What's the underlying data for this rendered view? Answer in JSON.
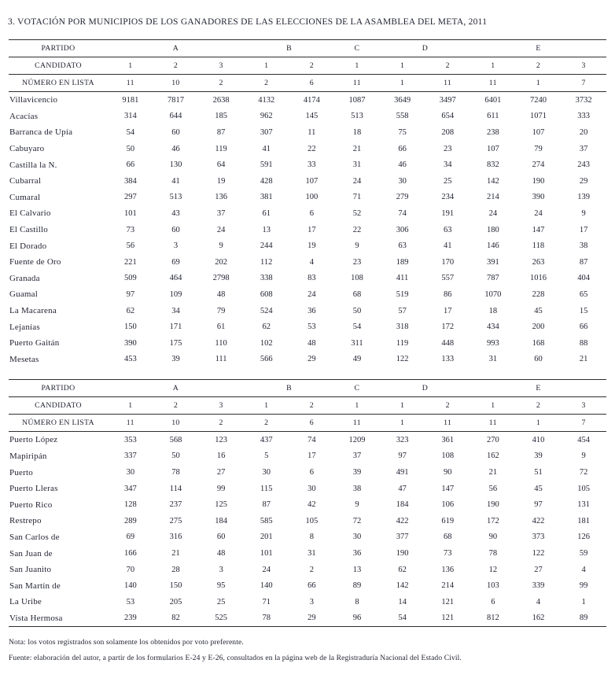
{
  "title": "3. VOTACIÓN POR MUNICIPIOS DE LOS GANADORES DE LAS ELECCIONES DE LA ASAMBLEA DEL META, 2011",
  "table_header": {
    "partido_label": "PARTIDO",
    "candidato_label": "CANDIDATO",
    "numero_en_lista_label": "NÚMERO EN LISTA",
    "parties": [
      {
        "name": "A",
        "candidates": 3
      },
      {
        "name": "B",
        "candidates": 2
      },
      {
        "name": "C",
        "candidates": 1
      },
      {
        "name": "D",
        "candidates": 2
      },
      {
        "name": "E",
        "candidates": 3
      }
    ],
    "candidato_numbers": [
      "1",
      "2",
      "3",
      "1",
      "2",
      "1",
      "1",
      "2",
      "1",
      "2",
      "3"
    ],
    "numero_en_lista": [
      "11",
      "10",
      "2",
      "2",
      "6",
      "11",
      "1",
      "11",
      "11",
      "1",
      "7"
    ]
  },
  "table1": {
    "rows": [
      {
        "municipio": "Villavicencio",
        "votes": [
          9181,
          7817,
          2638,
          4132,
          4174,
          1087,
          3649,
          3497,
          6401,
          7240,
          3732
        ]
      },
      {
        "municipio": "Acacías",
        "votes": [
          314,
          644,
          185,
          962,
          145,
          513,
          558,
          654,
          611,
          1071,
          333
        ]
      },
      {
        "municipio": "Barranca de Upía",
        "votes": [
          54,
          60,
          87,
          307,
          11,
          18,
          75,
          208,
          238,
          107,
          20
        ]
      },
      {
        "municipio": "Cabuyaro",
        "votes": [
          50,
          46,
          119,
          41,
          22,
          21,
          66,
          23,
          107,
          79,
          37
        ]
      },
      {
        "municipio": "Castilla la N.",
        "votes": [
          66,
          130,
          64,
          591,
          33,
          31,
          46,
          34,
          832,
          274,
          243
        ]
      },
      {
        "municipio": "Cubarral",
        "votes": [
          384,
          41,
          19,
          428,
          107,
          24,
          30,
          25,
          142,
          190,
          29
        ]
      },
      {
        "municipio": "Cumaral",
        "votes": [
          297,
          513,
          136,
          381,
          100,
          71,
          279,
          234,
          214,
          390,
          139
        ]
      },
      {
        "municipio": "El Calvario",
        "votes": [
          101,
          43,
          37,
          61,
          6,
          52,
          74,
          191,
          24,
          24,
          9
        ]
      },
      {
        "municipio": "El Castillo",
        "votes": [
          73,
          60,
          24,
          13,
          17,
          22,
          306,
          63,
          180,
          147,
          17
        ]
      },
      {
        "municipio": "El Dorado",
        "votes": [
          56,
          3,
          9,
          244,
          19,
          9,
          63,
          41,
          146,
          118,
          38
        ]
      },
      {
        "municipio": "Fuente de Oro",
        "votes": [
          221,
          69,
          202,
          112,
          4,
          23,
          189,
          170,
          391,
          263,
          87
        ]
      },
      {
        "municipio": "Granada",
        "votes": [
          509,
          464,
          2798,
          338,
          83,
          108,
          411,
          557,
          787,
          1016,
          404
        ]
      },
      {
        "municipio": "Guamal",
        "votes": [
          97,
          109,
          48,
          608,
          24,
          68,
          519,
          86,
          1070,
          228,
          65
        ]
      },
      {
        "municipio": "La Macarena",
        "votes": [
          62,
          34,
          79,
          524,
          36,
          50,
          57,
          17,
          18,
          45,
          15
        ]
      },
      {
        "municipio": "Lejanías",
        "votes": [
          150,
          171,
          61,
          62,
          53,
          54,
          318,
          172,
          434,
          200,
          66
        ]
      },
      {
        "municipio": "Puerto Gaitán",
        "votes": [
          390,
          175,
          110,
          102,
          48,
          311,
          119,
          448,
          993,
          168,
          88
        ]
      },
      {
        "municipio": "Mesetas",
        "votes": [
          453,
          39,
          111,
          566,
          29,
          49,
          122,
          133,
          31,
          60,
          21
        ]
      }
    ]
  },
  "table2": {
    "rows": [
      {
        "municipio": "Puerto López",
        "votes": [
          353,
          568,
          123,
          437,
          74,
          1209,
          323,
          361,
          270,
          410,
          454
        ]
      },
      {
        "municipio": "Mapiripán",
        "votes": [
          337,
          50,
          16,
          5,
          17,
          37,
          97,
          108,
          162,
          39,
          9
        ]
      },
      {
        "municipio": "Puerto",
        "votes": [
          30,
          78,
          27,
          30,
          6,
          39,
          491,
          90,
          21,
          51,
          72
        ]
      },
      {
        "municipio": "Puerto Lleras",
        "votes": [
          347,
          114,
          99,
          115,
          30,
          38,
          47,
          147,
          56,
          45,
          105
        ]
      },
      {
        "municipio": "Puerto Rico",
        "votes": [
          128,
          237,
          125,
          87,
          42,
          9,
          184,
          106,
          190,
          97,
          131
        ]
      },
      {
        "municipio": "Restrepo",
        "votes": [
          289,
          275,
          184,
          585,
          105,
          72,
          422,
          619,
          172,
          422,
          181
        ]
      },
      {
        "municipio": "San Carlos de",
        "votes": [
          69,
          316,
          60,
          201,
          8,
          30,
          377,
          68,
          90,
          373,
          126
        ]
      },
      {
        "municipio": "San Juan de",
        "votes": [
          166,
          21,
          48,
          101,
          31,
          36,
          190,
          73,
          78,
          122,
          59
        ]
      },
      {
        "municipio": "San Juanito",
        "votes": [
          70,
          28,
          3,
          24,
          2,
          13,
          62,
          136,
          12,
          27,
          4
        ]
      },
      {
        "municipio": "San Martín de",
        "votes": [
          140,
          150,
          95,
          140,
          66,
          89,
          142,
          214,
          103,
          339,
          99
        ]
      },
      {
        "municipio": "La Uribe",
        "votes": [
          53,
          205,
          25,
          71,
          3,
          8,
          14,
          121,
          6,
          4,
          1
        ]
      },
      {
        "municipio": "Vista Hermosa",
        "votes": [
          239,
          82,
          525,
          78,
          29,
          96,
          54,
          121,
          812,
          162,
          89
        ]
      }
    ]
  },
  "footer": {
    "nota": "Nota: los votos registrados son solamente los obtenidos por voto preferente.",
    "fuente": "Fuente: elaboración del autor, a partir de los formularios E-24 y E-26, consultados en la página web de la Registraduría Nacional del Estado Civil."
  },
  "colors": {
    "text": "#232534",
    "rule": "#2f2f2f"
  }
}
